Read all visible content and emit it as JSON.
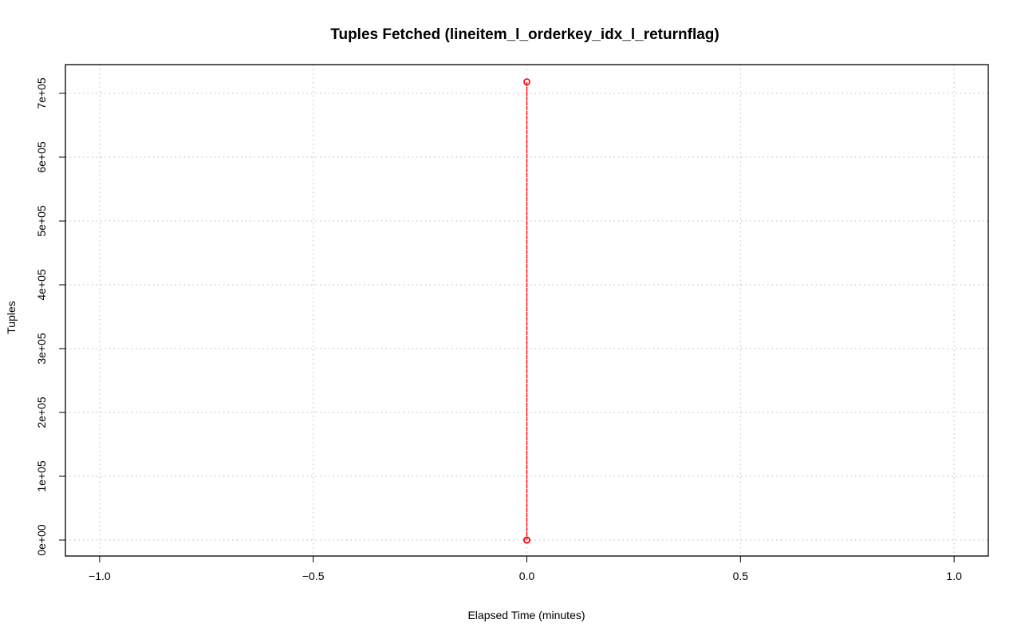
{
  "chart_data": {
    "type": "line",
    "title": "Tuples Fetched (lineitem_l_orderkey_idx_l_returnflag)",
    "xlabel": "Elapsed Time (minutes)",
    "ylabel": "Tuples",
    "xlim": [
      -1.08,
      1.08
    ],
    "ylim": [
      -25000,
      745000
    ],
    "x_ticks": [
      -1.0,
      -0.5,
      0.0,
      0.5,
      1.0
    ],
    "x_tick_labels": [
      "−1.0",
      "−0.5",
      "0.0",
      "0.5",
      "1.0"
    ],
    "y_ticks": [
      0,
      100000,
      200000,
      300000,
      400000,
      500000,
      600000,
      700000
    ],
    "y_tick_labels": [
      "0e+00",
      "1e+05",
      "2e+05",
      "3e+05",
      "4e+05",
      "5e+05",
      "6e+05",
      "7e+05"
    ],
    "grid": true,
    "series": [
      {
        "color": "#ff0000",
        "line_style": "dashed",
        "marker": "open-circle",
        "points": [
          {
            "x": 0.0,
            "y": 0
          },
          {
            "x": 0.0,
            "y": 718000
          },
          {
            "x": 0.0,
            "y": 0
          }
        ]
      }
    ]
  }
}
